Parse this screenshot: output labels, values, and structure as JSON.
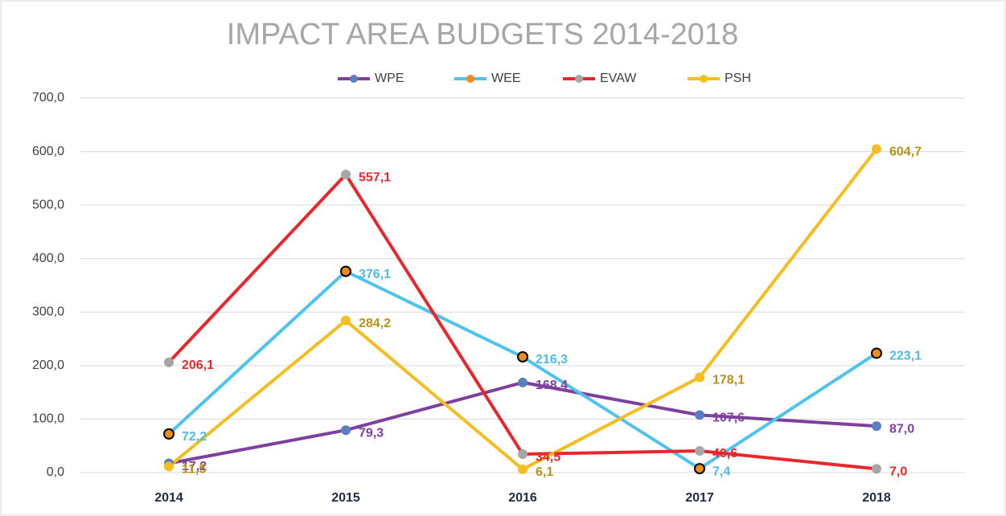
{
  "chart_data": {
    "type": "line",
    "title": "IMPACT AREA BUDGETS 2014-2018",
    "categories": [
      "2014",
      "2015",
      "2016",
      "2017",
      "2018"
    ],
    "series": [
      {
        "name": "WPE",
        "color": "#7e3f9e",
        "marker_color": "#5a7fc0",
        "label_color": "#7e3f9e",
        "values": [
          17.2,
          79.3,
          168.4,
          107.6,
          87.0
        ],
        "value_labels": [
          "17,2",
          "79,3",
          "168,4",
          "107,6",
          "87,0"
        ]
      },
      {
        "name": "WEE",
        "color": "#4fc3f0",
        "marker_color": "#f08c1c",
        "label_color": "#4fb9e8",
        "values": [
          72.2,
          376.1,
          216.3,
          7.4,
          223.1
        ],
        "value_labels": [
          "72,2",
          "376,1",
          "216,3",
          "7,4",
          "223,1"
        ]
      },
      {
        "name": "EVAW",
        "color": "#e8262b",
        "marker_color": "#a6a6a6",
        "label_color": "#e8262b",
        "values": [
          206.1,
          557.1,
          34.5,
          40.6,
          7.0
        ],
        "value_labels": [
          "206,1",
          "557,1",
          "34,5",
          "40,6",
          "7,0"
        ]
      },
      {
        "name": "PSH",
        "color": "#f5bd1f",
        "marker_color": "#f5bd1f",
        "label_color": "#b8901a",
        "values": [
          11.5,
          284.2,
          6.1,
          178.1,
          604.7
        ],
        "value_labels": [
          "11,5",
          "284,2",
          "6,1",
          "178,1",
          "604,7"
        ]
      }
    ],
    "ylim": [
      0,
      700
    ],
    "yticks": [
      {
        "value": 0,
        "label": "0,0"
      },
      {
        "value": 100,
        "label": "100,0"
      },
      {
        "value": 200,
        "label": "200,0"
      },
      {
        "value": 300,
        "label": "300,0"
      },
      {
        "value": 400,
        "label": "400,0"
      },
      {
        "value": 500,
        "label": "500,0"
      },
      {
        "value": 600,
        "label": "600,0"
      },
      {
        "value": 700,
        "label": "700,0"
      }
    ],
    "grid": true,
    "legend": "top"
  }
}
